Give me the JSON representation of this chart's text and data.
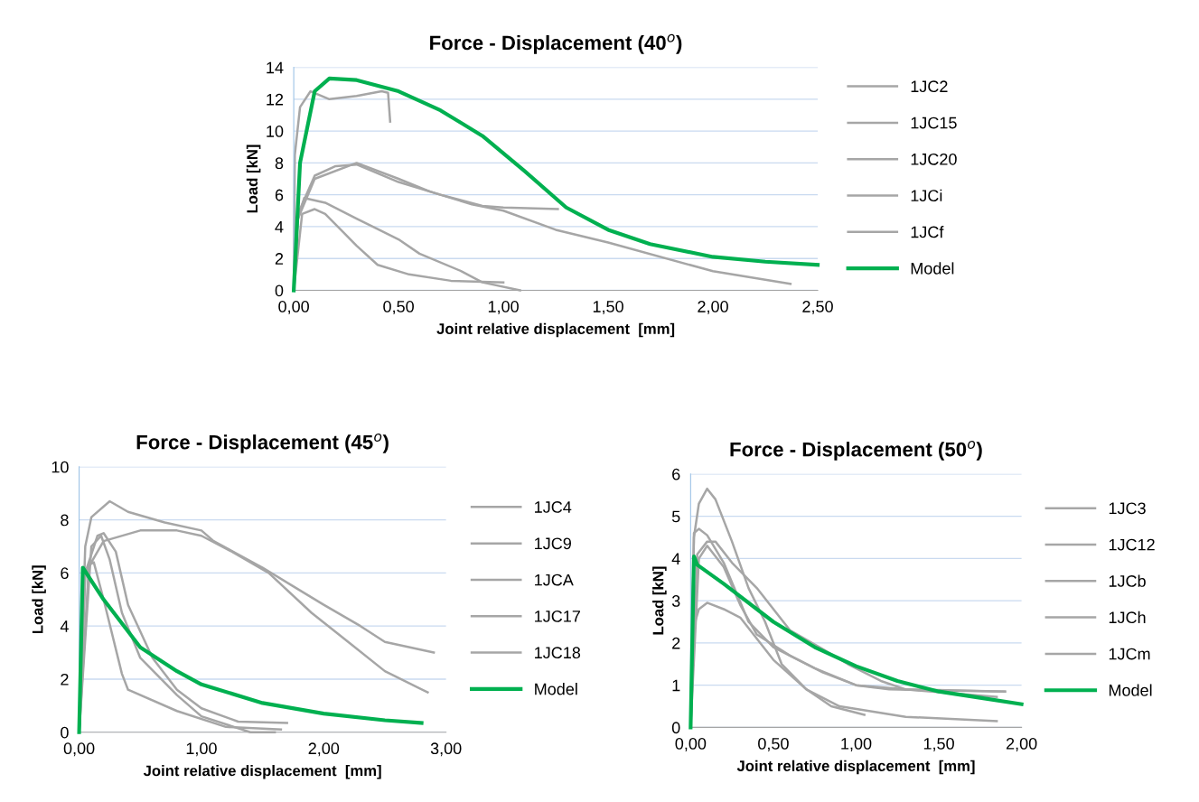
{
  "chart_data": [
    {
      "type": "line",
      "title": "Force - Displacement (40$^{o}$)",
      "xlabel": "Joint relative displacement  [mm]",
      "ylabel": "Load [kN]",
      "xlim": [
        0,
        2.5
      ],
      "xticks": [
        {
          "value": 0,
          "label": "0,00"
        },
        {
          "value": 0.5,
          "label": "0,50"
        },
        {
          "value": 1,
          "label": "1,00"
        },
        {
          "value": 1.5,
          "label": "1,50"
        },
        {
          "value": 2,
          "label": "2,00"
        },
        {
          "value": 2.5,
          "label": "2,50"
        }
      ],
      "ylim": [
        0,
        14
      ],
      "yticks": [
        0,
        2,
        4,
        6,
        8,
        10,
        12,
        14
      ],
      "grid": "y",
      "legend": "right",
      "marker": "none",
      "line_style": "solid",
      "series": [
        {
          "name": "1JC2",
          "color": "#a6a6a6",
          "x": [
            0,
            0.005,
            0.03,
            0.08,
            0.17,
            0.3,
            0.42,
            0.45,
            0.46
          ],
          "values": [
            0,
            8.5,
            11.5,
            12.5,
            12,
            12.2,
            12.5,
            12.4,
            10.6
          ]
        },
        {
          "name": "1JC15",
          "color": "#a6a6a6",
          "x": [
            0,
            0.02,
            0.1,
            0.2,
            0.3,
            0.5,
            0.7,
            0.9,
            1.0,
            1.26
          ],
          "values": [
            0,
            4.8,
            7.2,
            7.8,
            7.9,
            6.8,
            6.0,
            5.3,
            5.2,
            5.1
          ]
        },
        {
          "name": "1JC20",
          "color": "#a6a6a6",
          "x": [
            0,
            0.02,
            0.1,
            0.3,
            0.5,
            0.65,
            0.85,
            1.0,
            1.25,
            1.5,
            2.0,
            2.37
          ],
          "values": [
            0,
            4.5,
            7,
            8,
            7,
            6.2,
            5.4,
            5,
            3.8,
            3,
            1.2,
            0.4
          ]
        },
        {
          "name": "1JCi",
          "color": "#a6a6a6",
          "x": [
            0,
            0.01,
            0.05,
            0.15,
            0.3,
            0.5,
            0.6,
            0.8,
            0.9,
            1.08
          ],
          "values": [
            0,
            4,
            5.8,
            5.5,
            4.5,
            3.2,
            2.3,
            1.2,
            0.5,
            0
          ]
        },
        {
          "name": "1JCf",
          "color": "#a6a6a6",
          "x": [
            0,
            0.04,
            0.1,
            0.15,
            0.3,
            0.4,
            0.55,
            0.75,
            1.0
          ],
          "values": [
            0,
            4.8,
            5.1,
            4.8,
            2.8,
            1.6,
            1.0,
            0.6,
            0.5
          ]
        },
        {
          "name": "Model",
          "color": "#00b050",
          "x": [
            0,
            0.03,
            0.1,
            0.17,
            0.3,
            0.5,
            0.7,
            0.9,
            1.1,
            1.3,
            1.5,
            1.7,
            2.0,
            2.25,
            2.5
          ],
          "values": [
            0,
            8,
            12.5,
            13.3,
            13.2,
            12.5,
            11.3,
            9.7,
            7.5,
            5.2,
            3.8,
            2.9,
            2.1,
            1.8,
            1.6
          ]
        }
      ]
    },
    {
      "type": "line",
      "title": "Force - Displacement (45$^{o}$)",
      "xlabel": "Joint relative displacement  [mm]",
      "ylabel": "Load [kN]",
      "xlim": [
        0,
        3
      ],
      "xticks": [
        {
          "value": 0,
          "label": "0,00"
        },
        {
          "value": 1,
          "label": "1,00"
        },
        {
          "value": 2,
          "label": "2,00"
        },
        {
          "value": 3,
          "label": "3,00"
        }
      ],
      "ylim": [
        0,
        10
      ],
      "yticks": [
        0,
        2,
        4,
        6,
        8,
        10
      ],
      "grid": "y",
      "legend": "right",
      "marker": "none",
      "line_style": "solid",
      "series": [
        {
          "name": "1JC4",
          "color": "#a6a6a6",
          "x": [
            0,
            0.05,
            0.1,
            0.25,
            0.4,
            0.7,
            1.0,
            1.1,
            1.5,
            1.75,
            2.0,
            2.3,
            2.5,
            2.9
          ],
          "values": [
            0,
            7,
            8.1,
            8.7,
            8.3,
            7.9,
            7.6,
            7.2,
            6.2,
            5.5,
            4.8,
            4.0,
            3.4,
            3.0
          ]
        },
        {
          "name": "1JC9",
          "color": "#a6a6a6",
          "x": [
            0,
            0.05,
            0.2,
            0.5,
            0.8,
            1.0,
            1.25,
            1.55,
            1.9,
            2.2,
            2.5,
            2.85
          ],
          "values": [
            0,
            6,
            7.2,
            7.6,
            7.6,
            7.4,
            6.8,
            6,
            4.5,
            3.4,
            2.3,
            1.5
          ]
        },
        {
          "name": "1JCA",
          "color": "#a6a6a6",
          "x": [
            0,
            0.05,
            0.15,
            0.2,
            0.3,
            0.4,
            0.6,
            0.8,
            1.0,
            1.3,
            1.7
          ],
          "values": [
            0,
            6,
            7.4,
            7.5,
            6.8,
            4.8,
            2.8,
            1.6,
            0.9,
            0.4,
            0.35
          ]
        },
        {
          "name": "1JC17",
          "color": "#a6a6a6",
          "x": [
            0,
            0.1,
            0.18,
            0.25,
            0.35,
            0.5,
            0.8,
            1.0,
            1.4,
            1.6
          ],
          "values": [
            0,
            7,
            7.4,
            6.5,
            4.5,
            2.8,
            1.4,
            0.6,
            0,
            0
          ]
        },
        {
          "name": "1JC18",
          "color": "#a6a6a6",
          "x": [
            0,
            0.08,
            0.12,
            0.2,
            0.35,
            0.4,
            0.8,
            1.2,
            1.65
          ],
          "values": [
            0,
            6.3,
            6.4,
            5,
            2.2,
            1.6,
            0.8,
            0.2,
            0.1
          ]
        },
        {
          "name": "Model",
          "color": "#00b050",
          "x": [
            0,
            0.03,
            0.2,
            0.5,
            0.8,
            1.0,
            1.5,
            2.0,
            2.5,
            2.8
          ],
          "values": [
            0,
            6.2,
            5,
            3.2,
            2.3,
            1.8,
            1.1,
            0.7,
            0.45,
            0.35
          ]
        }
      ]
    },
    {
      "type": "line",
      "title": "Force - Displacement (50$^{o}$)",
      "xlabel": "Joint relative displacement  [mm]",
      "ylabel": "Load [kN]",
      "xlim": [
        0,
        2
      ],
      "xticks": [
        {
          "value": 0,
          "label": "0,00"
        },
        {
          "value": 0.5,
          "label": "0,50"
        },
        {
          "value": 1,
          "label": "1,00"
        },
        {
          "value": 1.5,
          "label": "1,50"
        },
        {
          "value": 2,
          "label": "2,00"
        }
      ],
      "ylim": [
        0,
        6
      ],
      "yticks": [
        0,
        1,
        2,
        3,
        4,
        5,
        6
      ],
      "grid": "y",
      "legend": "right",
      "marker": "none",
      "line_style": "solid",
      "series": [
        {
          "name": "1JC3",
          "color": "#a6a6a6",
          "x": [
            0,
            0.02,
            0.05,
            0.1,
            0.15,
            0.25,
            0.35,
            0.45,
            0.55,
            0.7,
            0.85,
            1.05
          ],
          "values": [
            0,
            4.5,
            5.3,
            5.65,
            5.4,
            4.4,
            3.3,
            2.5,
            1.5,
            0.9,
            0.5,
            0.3
          ]
        },
        {
          "name": "1JC12",
          "color": "#a6a6a6",
          "x": [
            0,
            0.02,
            0.05,
            0.1,
            0.2,
            0.35,
            0.5,
            0.75,
            1.0,
            1.2,
            1.9
          ],
          "values": [
            0,
            4.6,
            4.7,
            4.55,
            3.9,
            2.5,
            1.9,
            1.4,
            1.0,
            0.9,
            0.85
          ]
        },
        {
          "name": "1JCb",
          "color": "#a6a6a6",
          "x": [
            0,
            0.04,
            0.1,
            0.15,
            0.25,
            0.4,
            0.6,
            0.8,
            0.95,
            1.15,
            1.3,
            1.85
          ],
          "values": [
            0,
            4.1,
            4.4,
            4.4,
            3.9,
            3.3,
            2.3,
            1.85,
            1.5,
            1.1,
            0.9,
            0.72
          ]
        },
        {
          "name": "1JCh",
          "color": "#a6a6a6",
          "x": [
            0,
            0.05,
            0.1,
            0.2,
            0.3,
            0.4,
            0.6,
            0.8,
            1.0,
            1.3,
            1.9
          ],
          "values": [
            0,
            4,
            4.3,
            3.8,
            2.9,
            2.2,
            1.7,
            1.3,
            1.0,
            0.9,
            0.85
          ]
        },
        {
          "name": "1JCm",
          "color": "#a6a6a6",
          "x": [
            0,
            0.02,
            0.05,
            0.1,
            0.2,
            0.3,
            0.5,
            0.7,
            0.9,
            1.3,
            1.85
          ],
          "values": [
            0,
            2.4,
            2.8,
            2.95,
            2.8,
            2.6,
            1.6,
            0.9,
            0.5,
            0.25,
            0.15
          ]
        },
        {
          "name": "Model",
          "color": "#00b050",
          "x": [
            0,
            0.02,
            0.04,
            0.2,
            0.5,
            0.75,
            1.0,
            1.25,
            1.5,
            1.75,
            2.0
          ],
          "values": [
            0,
            4.05,
            3.85,
            3.4,
            2.5,
            1.9,
            1.45,
            1.1,
            0.85,
            0.7,
            0.55
          ]
        }
      ]
    }
  ]
}
